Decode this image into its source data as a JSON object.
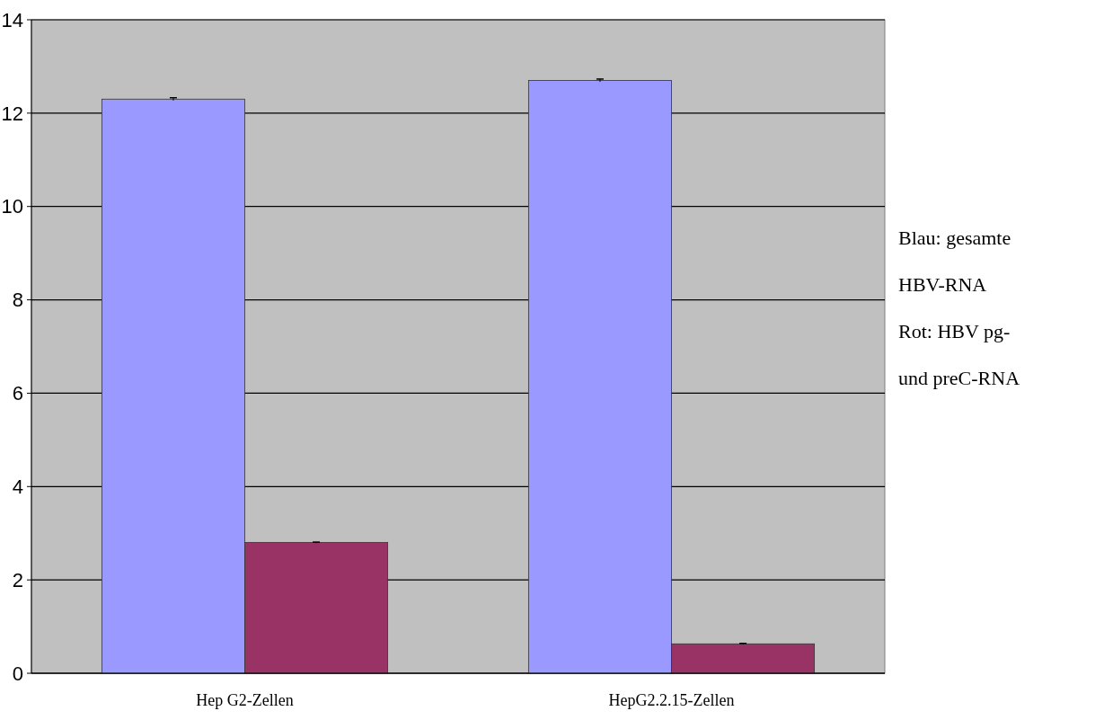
{
  "chart_data": {
    "type": "bar",
    "categories": [
      "Hep G2-Zellen",
      "HepG2.2.15-Zellen"
    ],
    "series": [
      {
        "color": "#9999ff",
        "values": [
          12.3,
          12.7
        ],
        "errors": [
          0.03,
          0.03
        ]
      },
      {
        "color": "#993366",
        "values": [
          2.8,
          0.63
        ],
        "errors": [
          0.01,
          0.01
        ]
      }
    ],
    "ylim": [
      0,
      14
    ],
    "yticks": [
      0,
      2,
      4,
      6,
      8,
      10,
      12,
      14
    ],
    "grid": "y",
    "annotations": [
      "Blau: gesamte HBV-RNA",
      "Rot: HBV pg- und preC-RNA"
    ]
  }
}
